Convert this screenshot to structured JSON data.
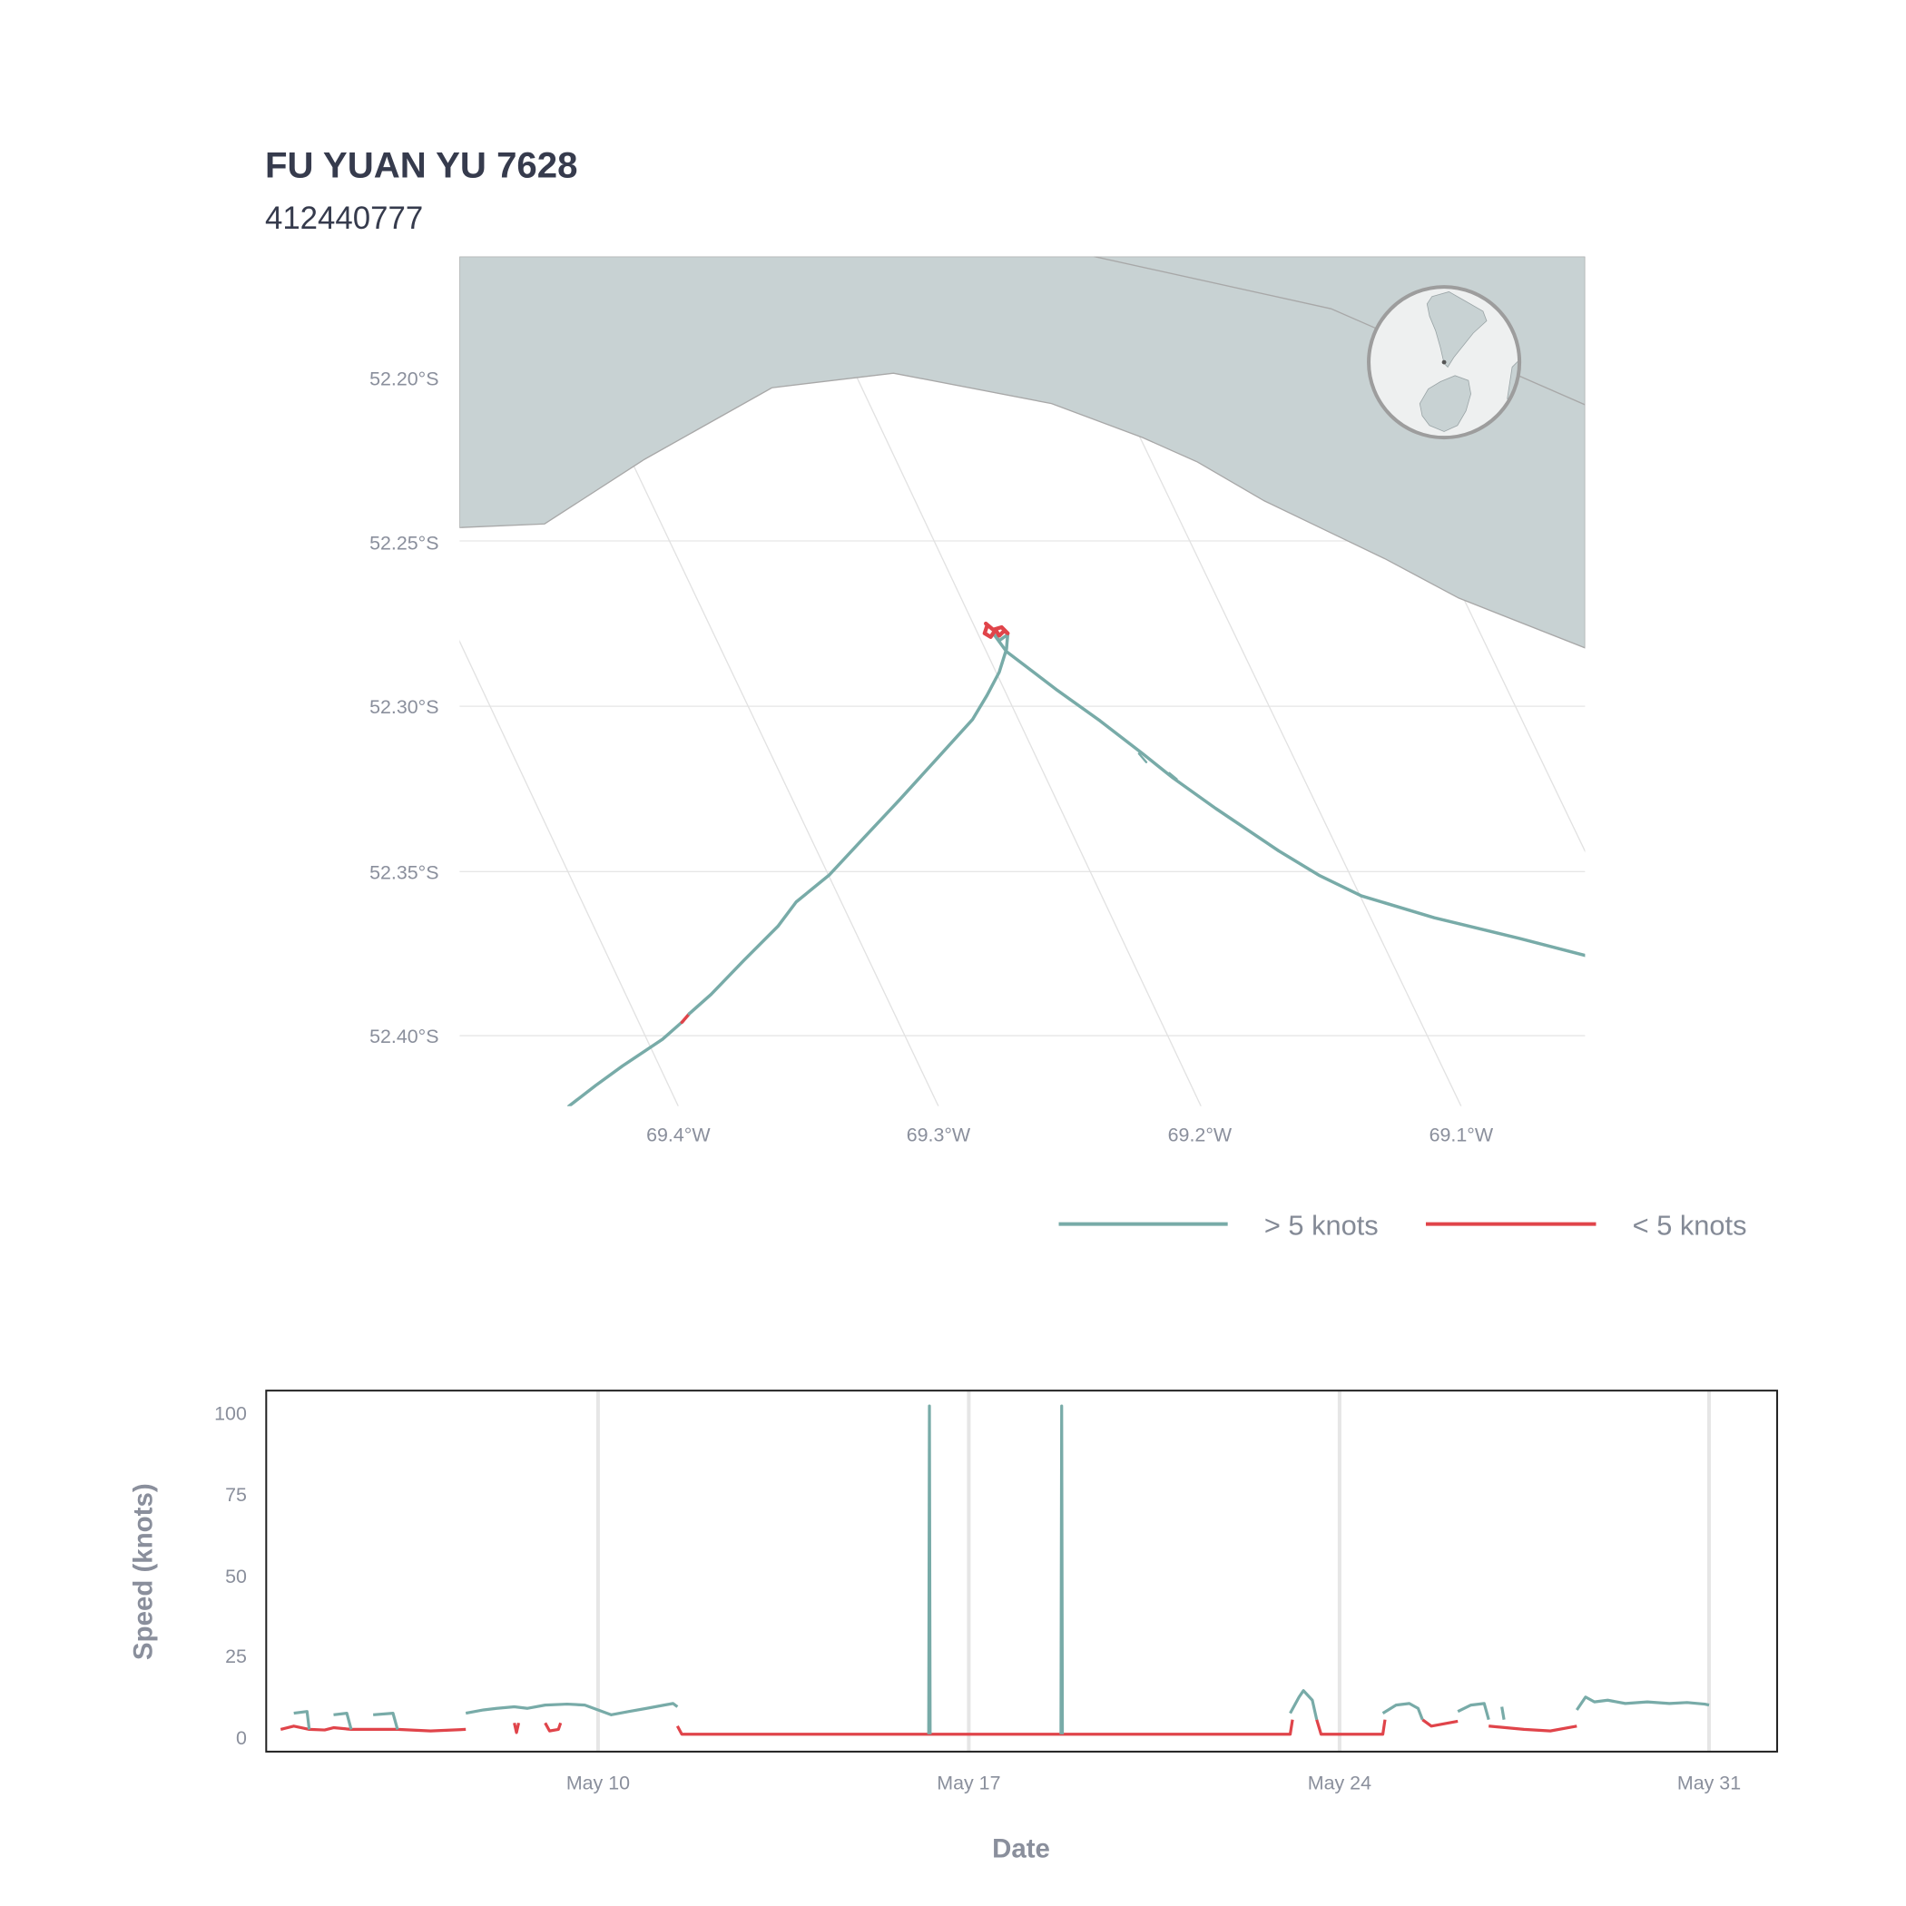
{
  "header": {
    "vessel_name": "FU YUAN YU 7628",
    "mmsi": "412440777"
  },
  "colors": {
    "fast": "#78aba8",
    "slow": "#e0444a",
    "land": "#c8d2d3",
    "globe_land": "#c8d2d3",
    "globe_sea": "#eef0f0"
  },
  "map": {
    "lat_ticks": [
      "52.20°S",
      "52.25°S",
      "52.30°S",
      "52.35°S",
      "52.40°S"
    ],
    "lon_ticks": [
      "69.4°W",
      "69.3°W",
      "69.2°W",
      "69.1°W"
    ],
    "inset_globe": {
      "icon": "globe-inset-icon",
      "region": "South America and Antarctica"
    }
  },
  "legend": {
    "items": [
      {
        "label": "> 5 knots",
        "color": "#78aba8"
      },
      {
        "label": "< 5 knots",
        "color": "#e0444a"
      }
    ]
  },
  "chart_data": {
    "type": "line",
    "title": "",
    "xlabel": "Date",
    "ylabel": "Speed (knots)",
    "x_ticks": [
      "May 10",
      "May 17",
      "May 24",
      "May 31"
    ],
    "y_ticks": [
      "0",
      "25",
      "50",
      "75",
      "100"
    ],
    "ylim": [
      0,
      110
    ],
    "xlim": [
      "2021-05-03",
      "2021-05-31"
    ],
    "grid": "vertical",
    "series": [
      {
        "name": "> 5 knots",
        "color": "#78aba8",
        "segments": [
          [
            [
              "2021-05-04T06:00",
              7.0
            ],
            [
              "2021-05-04T12:00",
              7.5
            ],
            [
              "2021-05-04T13:00",
              2.0
            ]
          ],
          [
            [
              "2021-05-05T00:00",
              6.5
            ],
            [
              "2021-05-05T06:00",
              7.0
            ],
            [
              "2021-05-05T08:00",
              2.0
            ]
          ],
          [
            [
              "2021-05-05T18:00",
              6.5
            ],
            [
              "2021-05-06T03:00",
              7.0
            ],
            [
              "2021-05-06T05:00",
              2.0
            ]
          ],
          [
            [
              "2021-05-07T12:00",
              7.0
            ],
            [
              "2021-05-07T20:00",
              8.0
            ],
            [
              "2021-05-08T02:00",
              8.5
            ],
            [
              "2021-05-08T10:00",
              9.0
            ],
            [
              "2021-05-08T16:00",
              8.5
            ],
            [
              "2021-05-09T00:00",
              9.5
            ],
            [
              "2021-05-09T10:00",
              9.8
            ],
            [
              "2021-05-09T18:00",
              9.5
            ],
            [
              "2021-05-10T00:00",
              8.0
            ],
            [
              "2021-05-10T06:00",
              6.5
            ],
            [
              "2021-05-10T14:00",
              7.5
            ],
            [
              "2021-05-10T22:00",
              8.5
            ],
            [
              "2021-05-11T06:00",
              9.5
            ],
            [
              "2021-05-11T10:00",
              10.0
            ],
            [
              "2021-05-11T12:00",
              9.0
            ]
          ],
          [
            [
              "2021-05-16T06:00",
              0.5
            ],
            [
              "2021-05-16T06:20",
              102.0
            ],
            [
              "2021-05-16T06:40",
              0.5
            ]
          ],
          [
            [
              "2021-05-18T18:00",
              0.5
            ],
            [
              "2021-05-18T18:20",
              102.0
            ],
            [
              "2021-05-18T18:40",
              0.5
            ]
          ],
          [
            [
              "2021-05-23T02:00",
              7.0
            ],
            [
              "2021-05-23T06:00",
              12.0
            ],
            [
              "2021-05-23T08:00",
              14.0
            ],
            [
              "2021-05-23T12:00",
              11.0
            ],
            [
              "2021-05-23T14:00",
              5.0
            ]
          ],
          [
            [
              "2021-05-24T20:00",
              7.0
            ],
            [
              "2021-05-25T02:00",
              9.5
            ],
            [
              "2021-05-25T08:00",
              10.0
            ],
            [
              "2021-05-25T12:00",
              8.5
            ],
            [
              "2021-05-25T14:00",
              5.0
            ]
          ],
          [
            [
              "2021-05-26T06:00",
              7.5
            ],
            [
              "2021-05-26T12:00",
              9.5
            ],
            [
              "2021-05-26T18:00",
              10.0
            ],
            [
              "2021-05-26T20:00",
              5.0
            ]
          ],
          [
            [
              "2021-05-27T02:00",
              9.0
            ],
            [
              "2021-05-27T03:00",
              5.0
            ]
          ],
          [
            [
              "2021-05-28T12:00",
              8.0
            ],
            [
              "2021-05-28T16:00",
              12.0
            ],
            [
              "2021-05-28T20:00",
              10.5
            ],
            [
              "2021-05-29T02:00",
              11.0
            ],
            [
              "2021-05-29T10:00",
              10.0
            ],
            [
              "2021-05-29T20:00",
              10.5
            ],
            [
              "2021-05-30T06:00",
              10.0
            ],
            [
              "2021-05-30T14:00",
              10.3
            ],
            [
              "2021-05-30T22:00",
              9.8
            ],
            [
              "2021-05-31T00:00",
              9.5
            ]
          ]
        ]
      },
      {
        "name": "< 5 knots",
        "color": "#e0444a",
        "segments": [
          [
            [
              "2021-05-04T00:00",
              2.0
            ],
            [
              "2021-05-04T06:00",
              3.0
            ],
            [
              "2021-05-04T13:00",
              2.0
            ],
            [
              "2021-05-04T20:00",
              1.8
            ],
            [
              "2021-05-05T00:00",
              2.5
            ],
            [
              "2021-05-05T08:00",
              2.0
            ],
            [
              "2021-05-05T18:00",
              2.0
            ],
            [
              "2021-05-06T05:00",
              2.0
            ],
            [
              "2021-05-06T20:00",
              1.5
            ],
            [
              "2021-05-07T12:00",
              2.0
            ]
          ],
          [
            [
              "2021-05-08T10:00",
              4.0
            ],
            [
              "2021-05-08T11:00",
              1.0
            ],
            [
              "2021-05-08T12:00",
              4.0
            ]
          ],
          [
            [
              "2021-05-09T00:00",
              4.0
            ],
            [
              "2021-05-09T02:00",
              1.5
            ],
            [
              "2021-05-09T06:00",
              2.0
            ],
            [
              "2021-05-09T07:00",
              4.0
            ]
          ],
          [
            [
              "2021-05-11T12:00",
              3.0
            ],
            [
              "2021-05-11T14:00",
              0.5
            ],
            [
              "2021-05-14T00:00",
              0.5
            ],
            [
              "2021-05-16T06:00",
              0.5
            ],
            [
              "2021-05-17T12:00",
              0.5
            ],
            [
              "2021-05-18T18:00",
              0.5
            ],
            [
              "2021-05-21T00:00",
              0.5
            ],
            [
              "2021-05-23T02:00",
              0.5
            ],
            [
              "2021-05-23T03:00",
              5.0
            ]
          ],
          [
            [
              "2021-05-23T14:00",
              5.0
            ],
            [
              "2021-05-23T16:00",
              0.5
            ],
            [
              "2021-05-24T12:00",
              0.5
            ],
            [
              "2021-05-24T20:00",
              0.5
            ],
            [
              "2021-05-24T21:00",
              5.0
            ]
          ],
          [
            [
              "2021-05-25T14:00",
              5.0
            ],
            [
              "2021-05-25T18:00",
              3.0
            ],
            [
              "2021-05-26T06:00",
              4.5
            ]
          ],
          [
            [
              "2021-05-26T20:00",
              3.0
            ],
            [
              "2021-05-27T12:00",
              2.0
            ],
            [
              "2021-05-28T00:00",
              1.5
            ],
            [
              "2021-05-28T12:00",
              3.0
            ]
          ]
        ]
      }
    ]
  }
}
